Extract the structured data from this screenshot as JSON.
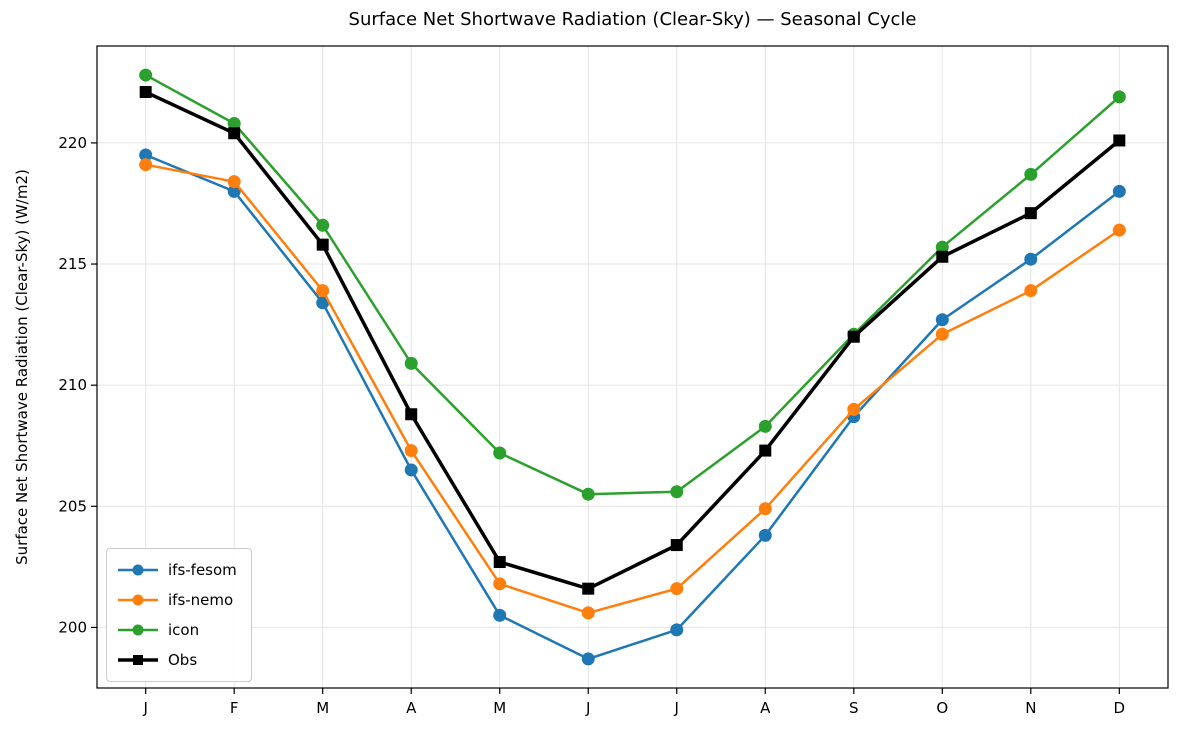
{
  "chart_data": {
    "type": "line",
    "title": "Surface Net Shortwave Radiation (Clear-Sky) — Seasonal Cycle",
    "xlabel": "",
    "ylabel": "Surface Net Shortwave Radiation (Clear-Sky) (W/m2)",
    "categories": [
      "J",
      "F",
      "M",
      "A",
      "M",
      "J",
      "J",
      "A",
      "S",
      "O",
      "N",
      "D"
    ],
    "yticks": [
      200,
      205,
      210,
      215,
      220
    ],
    "ylim": [
      197.5,
      224.0
    ],
    "grid": true,
    "legend_position": "lower left",
    "series": [
      {
        "name": "ifs-fesom",
        "color": "#1f77b4",
        "marker": "circle",
        "linewidth": 2.5,
        "values": [
          219.5,
          218.0,
          213.4,
          206.5,
          200.5,
          198.7,
          199.9,
          203.8,
          208.7,
          212.7,
          215.2,
          218.0
        ]
      },
      {
        "name": "ifs-nemo",
        "color": "#ff7f0e",
        "marker": "circle",
        "linewidth": 2.5,
        "values": [
          219.1,
          218.4,
          213.9,
          207.3,
          201.8,
          200.6,
          201.6,
          204.9,
          209.0,
          212.1,
          213.9,
          216.4
        ]
      },
      {
        "name": "icon",
        "color": "#2ca02c",
        "marker": "circle",
        "linewidth": 2.5,
        "values": [
          222.8,
          220.8,
          216.6,
          210.9,
          207.2,
          205.5,
          205.6,
          208.3,
          212.1,
          215.7,
          218.7,
          221.9
        ]
      },
      {
        "name": "Obs",
        "color": "#000000",
        "marker": "square",
        "linewidth": 3.5,
        "values": [
          222.1,
          220.4,
          215.8,
          208.8,
          202.7,
          201.6,
          203.4,
          207.3,
          212.0,
          215.3,
          217.1,
          220.1
        ]
      }
    ]
  }
}
